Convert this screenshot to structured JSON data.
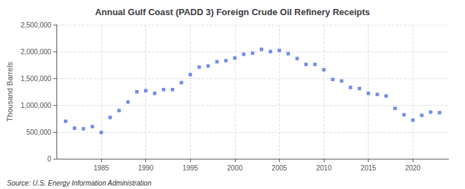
{
  "chart_data": {
    "type": "scatter",
    "title": "Annual Gulf Coast (PADD 3) Foreign Crude Oil Refinery Receipts",
    "ylabel": "Thousand Barrels",
    "annotation": "Source: U.S. Energy Information Administration",
    "marker": "square",
    "grid": true,
    "xlim": [
      1980,
      2024
    ],
    "ylim": [
      0,
      2500000
    ],
    "xticks": [
      1985,
      1990,
      1995,
      2000,
      2005,
      2010,
      2015,
      2020
    ],
    "yticks": [
      0,
      {
        "value": 500000,
        "label": "500,000"
      },
      {
        "value": 1000000,
        "label": "1,000,000"
      },
      {
        "value": 1500000,
        "label": "1,500,000"
      },
      {
        "value": 2000000,
        "label": "2,000,000"
      },
      {
        "value": 2500000,
        "label": "2,500,000"
      }
    ],
    "x": [
      1981,
      1982,
      1983,
      1984,
      1985,
      1986,
      1987,
      1988,
      1989,
      1990,
      1991,
      1992,
      1993,
      1994,
      1995,
      1996,
      1997,
      1998,
      1999,
      2000,
      2001,
      2002,
      2003,
      2004,
      2005,
      2006,
      2007,
      2008,
      2009,
      2010,
      2011,
      2012,
      2013,
      2014,
      2015,
      2016,
      2017,
      2018,
      2019,
      2020,
      2021,
      2022,
      2023
    ],
    "values": [
      700000,
      570000,
      560000,
      600000,
      490000,
      770000,
      900000,
      1060000,
      1250000,
      1270000,
      1220000,
      1290000,
      1290000,
      1420000,
      1570000,
      1710000,
      1730000,
      1810000,
      1830000,
      1880000,
      1950000,
      1970000,
      2040000,
      2000000,
      2020000,
      1960000,
      1870000,
      1760000,
      1760000,
      1660000,
      1480000,
      1450000,
      1330000,
      1310000,
      1220000,
      1200000,
      1170000,
      940000,
      820000,
      720000,
      810000,
      870000,
      860000
    ]
  }
}
